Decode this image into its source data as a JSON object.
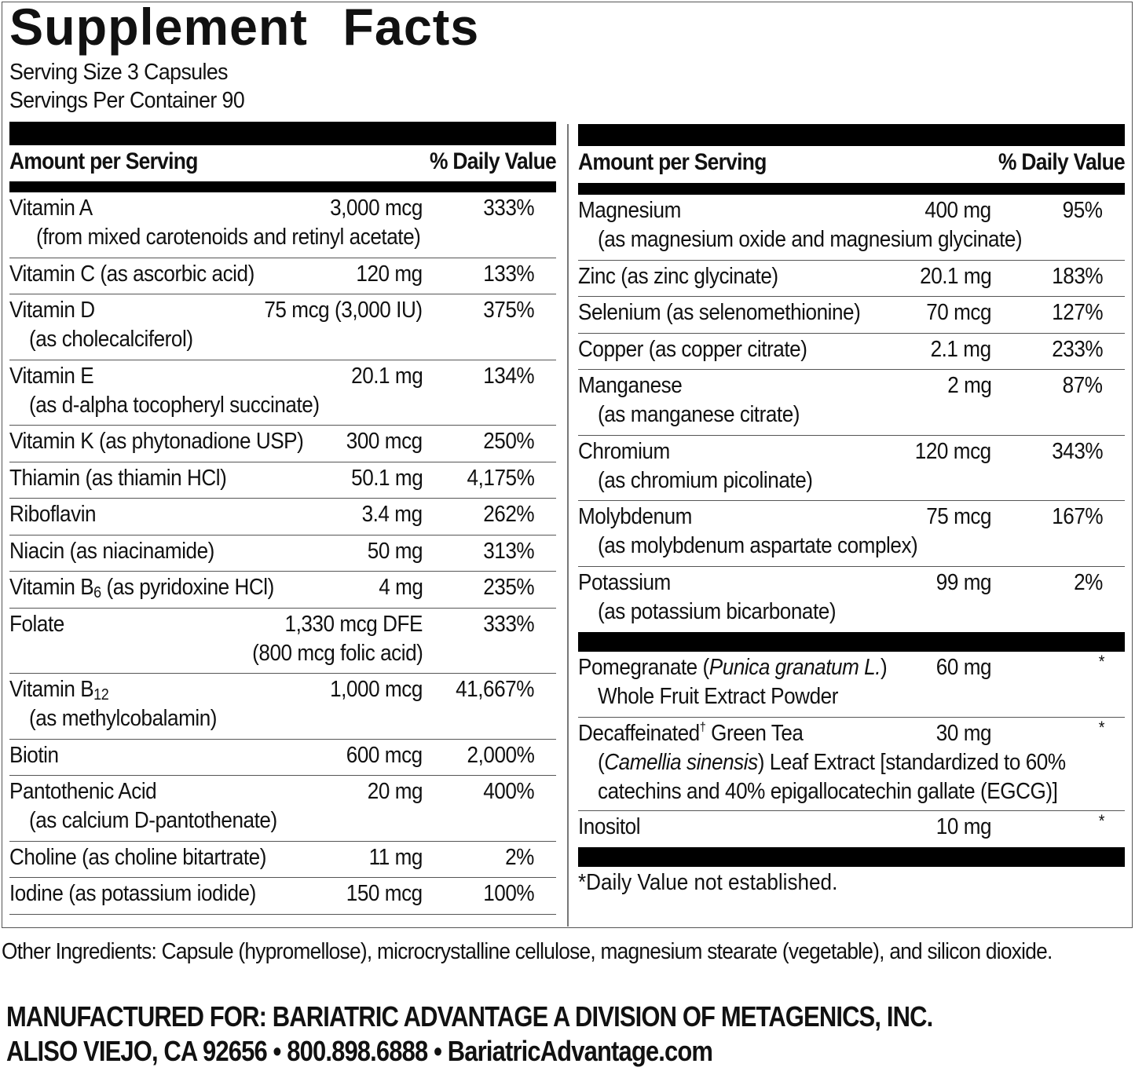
{
  "title": "Supplement Facts",
  "serving_size": "Serving Size 3 Capsules",
  "servings_per_container": "Servings Per Container 90",
  "header": {
    "amount_label": "Amount per Serving",
    "dv_label": "% Daily Value"
  },
  "left": {
    "rows": [
      {
        "line1": [
          {
            "text": "Vitamin A",
            "style": "normal"
          }
        ],
        "amount": "3,000 mcg",
        "dv": "333%",
        "line2": [
          {
            "text": "(from mixed carotenoids and retinyl acetate)",
            "style": "normal"
          }
        ]
      },
      {
        "line1": [
          {
            "text": "Vitamin C (as ascorbic acid)",
            "style": "normal"
          }
        ],
        "amount": "120 mg",
        "dv": "133%"
      },
      {
        "line1": [
          {
            "text": "Vitamin D",
            "style": "normal"
          }
        ],
        "amount": "75 mcg (3,000 IU)",
        "dv": "375%",
        "line2": [
          {
            "text": "(as cholecalciferol)",
            "style": "normal"
          }
        ]
      },
      {
        "line1": [
          {
            "text": "Vitamin E",
            "style": "normal"
          }
        ],
        "amount": "20.1 mg",
        "dv": "134%",
        "line2": [
          {
            "text": "(as d-alpha tocopheryl succinate)",
            "style": "normal"
          }
        ]
      },
      {
        "line1": [
          {
            "text": "Vitamin K (as phytonadione USP)",
            "style": "normal"
          }
        ],
        "amount": "300 mcg",
        "dv": "250%"
      },
      {
        "line1": [
          {
            "text": "Thiamin (as thiamin HCl)",
            "style": "normal"
          }
        ],
        "amount": "50.1 mg",
        "dv": "4,175%"
      },
      {
        "line1": [
          {
            "text": "Riboflavin",
            "style": "normal"
          }
        ],
        "amount": "3.4 mg",
        "dv": "262%"
      },
      {
        "line1": [
          {
            "text": "Niacin (as niacinamide)",
            "style": "normal"
          }
        ],
        "amount": "50 mg",
        "dv": "313%"
      },
      {
        "line1": [
          {
            "text": "Vitamin B",
            "style": "normal"
          },
          {
            "text": "6",
            "style": "sub"
          },
          {
            "text": " (as pyridoxine HCl)",
            "style": "normal"
          }
        ],
        "amount": "4 mg",
        "dv": "235%"
      },
      {
        "line1": [
          {
            "text": "Folate",
            "style": "normal"
          }
        ],
        "amount": "1,330 mcg DFE",
        "dv": "333%",
        "amount_line2": "(800 mcg folic acid)"
      },
      {
        "line1": [
          {
            "text": "Vitamin B",
            "style": "normal"
          },
          {
            "text": "12",
            "style": "sub"
          }
        ],
        "amount": "1,000 mcg",
        "dv": "41,667%",
        "line2": [
          {
            "text": "(as methylcobalamin)",
            "style": "normal"
          }
        ]
      },
      {
        "line1": [
          {
            "text": "Biotin",
            "style": "normal"
          }
        ],
        "amount": "600 mcg",
        "dv": "2,000%"
      },
      {
        "line1": [
          {
            "text": "Pantothenic Acid",
            "style": "normal"
          }
        ],
        "amount": "20 mg",
        "dv": "400%",
        "line2": [
          {
            "text": "(as calcium D-pantothenate)",
            "style": "normal"
          }
        ]
      },
      {
        "line1": [
          {
            "text": "Choline (as choline bitartrate)",
            "style": "normal"
          }
        ],
        "amount": "11 mg",
        "dv": "2%"
      },
      {
        "line1": [
          {
            "text": "Iodine (as potassium iodide)",
            "style": "normal"
          }
        ],
        "amount": "150 mcg",
        "dv": "100%"
      }
    ]
  },
  "right": {
    "minerals": [
      {
        "line1": [
          {
            "text": "Magnesium",
            "style": "normal"
          }
        ],
        "amount": "400 mg",
        "dv": "95%",
        "line2": [
          {
            "text": "(as magnesium oxide and magnesium glycinate)",
            "style": "normal"
          }
        ]
      },
      {
        "line1": [
          {
            "text": "Zinc (as zinc glycinate)",
            "style": "normal"
          }
        ],
        "amount": "20.1 mg",
        "dv": "183%"
      },
      {
        "line1": [
          {
            "text": "Selenium (as selenomethionine)",
            "style": "normal"
          }
        ],
        "amount": "70 mcg",
        "dv": "127%"
      },
      {
        "line1": [
          {
            "text": "Copper (as copper citrate)",
            "style": "normal"
          }
        ],
        "amount": "2.1 mg",
        "dv": "233%"
      },
      {
        "line1": [
          {
            "text": "Manganese",
            "style": "normal"
          }
        ],
        "amount": "2 mg",
        "dv": "87%",
        "line2": [
          {
            "text": "(as manganese citrate)",
            "style": "normal"
          }
        ]
      },
      {
        "line1": [
          {
            "text": "Chromium",
            "style": "normal"
          }
        ],
        "amount": "120 mcg",
        "dv": "343%",
        "line2": [
          {
            "text": "(as chromium picolinate)",
            "style": "normal"
          }
        ]
      },
      {
        "line1": [
          {
            "text": "Molybdenum",
            "style": "normal"
          }
        ],
        "amount": "75 mcg",
        "dv": "167%",
        "line2": [
          {
            "text": "(as molybdenum aspartate complex)",
            "style": "normal"
          }
        ]
      },
      {
        "line1": [
          {
            "text": "Potassium",
            "style": "normal"
          }
        ],
        "amount": "99 mg",
        "dv": "2%",
        "line2": [
          {
            "text": "(as potassium bicarbonate)",
            "style": "normal"
          }
        ]
      }
    ],
    "others": [
      {
        "line1": [
          {
            "text": "Pomegranate (",
            "style": "normal"
          },
          {
            "text": "Punica granatum L.",
            "style": "italic"
          },
          {
            "text": ")",
            "style": "normal"
          }
        ],
        "amount": "60 mg",
        "dv": "*",
        "line2": [
          {
            "text": "Whole Fruit Extract Powder",
            "style": "normal"
          }
        ]
      },
      {
        "line1": [
          {
            "text": "Decaffeinated",
            "style": "normal"
          },
          {
            "text": "†",
            "style": "sup"
          },
          {
            "text": " Green Tea",
            "style": "normal"
          }
        ],
        "amount": "30 mg",
        "dv": "*",
        "line2": [
          {
            "text": "(",
            "style": "normal"
          },
          {
            "text": "Camellia sinensis",
            "style": "italic"
          },
          {
            "text": ") Leaf Extract [standardized to 60%",
            "style": "normal"
          }
        ],
        "line3": [
          {
            "text": "catechins and 40% epigallocatechin gallate (EGCG)]",
            "style": "normal"
          }
        ]
      },
      {
        "line1": [
          {
            "text": "Inositol",
            "style": "normal"
          }
        ],
        "amount": "10 mg",
        "dv": "*"
      }
    ],
    "footnote": "*Daily Value not established."
  },
  "other_ingredients": "Other Ingredients: Capsule (hypromellose), microcrystalline cellulose, magnesium stearate (vegetable), and silicon dioxide.",
  "manufacturer": {
    "line1": "MANUFACTURED FOR: BARIATRIC ADVANTAGE A DIVISION OF METAGENICS, INC.",
    "line2": "ALISO VIEJO, CA 92656 • 800.898.6888 • BariatricAdvantage.com"
  }
}
